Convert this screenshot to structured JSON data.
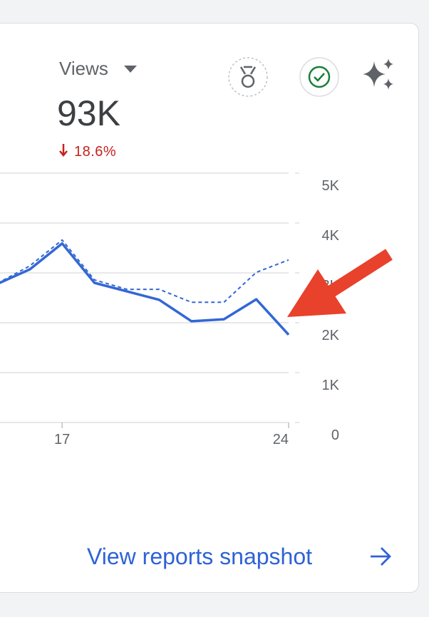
{
  "header": {
    "metric": "Views",
    "value": "93K",
    "change": "18.6%"
  },
  "footer": {
    "link": "View reports snapshot"
  },
  "chart_data": {
    "type": "line",
    "x": [
      15,
      16,
      17,
      18,
      19,
      20,
      21,
      22,
      23,
      24
    ],
    "series": [
      {
        "color": "#3367d6",
        "style": "solid",
        "values": [
          2780,
          3070,
          3590,
          2800,
          2630,
          2460,
          2030,
          2070,
          2470,
          1760
        ]
      },
      {
        "color": "#3367d6",
        "style": "dashed",
        "values": [
          2790,
          3140,
          3660,
          2860,
          2670,
          2670,
          2410,
          2410,
          3010,
          3260
        ]
      }
    ],
    "xlim": [
      15.08,
      24
    ],
    "xticks": [
      17,
      24
    ],
    "ylim": [
      0,
      5000
    ],
    "yticks": [
      0,
      {
        "value": 1000,
        "label": "1K"
      },
      {
        "value": 2000,
        "label": "2K"
      },
      {
        "value": 3000,
        "label": "3K"
      },
      {
        "value": 4000,
        "label": "4K"
      },
      {
        "value": 5000,
        "label": "5K"
      }
    ],
    "grid": true
  }
}
